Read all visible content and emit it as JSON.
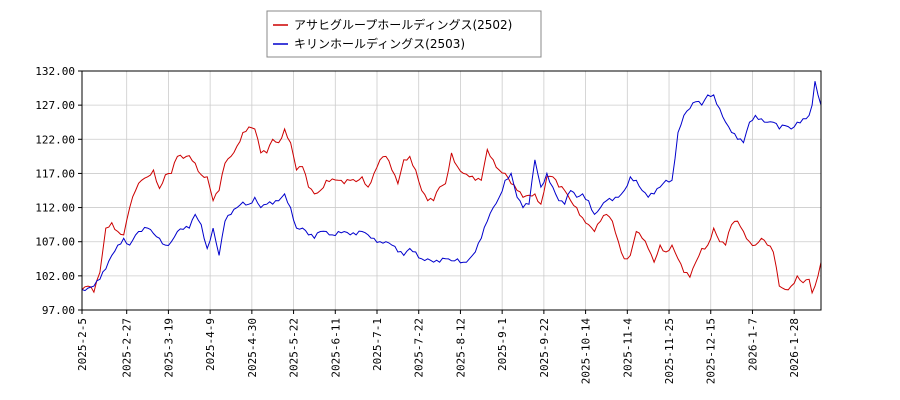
{
  "chart_data": {
    "type": "line",
    "title": "",
    "xlabel": "",
    "ylabel": "",
    "ylim": [
      97.0,
      132.0
    ],
    "yticks": [
      "97.00",
      "102.00",
      "107.00",
      "112.00",
      "117.00",
      "122.00",
      "127.00",
      "132.00"
    ],
    "grid": true,
    "legend_position": "top-center",
    "x_ticks": [
      {
        "label": "2025-2-5",
        "i": 0
      },
      {
        "label": "2025-2-27",
        "i": 15
      },
      {
        "label": "2025-3-19",
        "i": 29
      },
      {
        "label": "2025-4-9",
        "i": 43
      },
      {
        "label": "2025-4-30",
        "i": 57
      },
      {
        "label": "2025-5-22",
        "i": 71
      },
      {
        "label": "2025-6-11",
        "i": 85
      },
      {
        "label": "2025-7-1",
        "i": 99
      },
      {
        "label": "2025-7-22",
        "i": 113
      },
      {
        "label": "2025-8-12",
        "i": 127
      },
      {
        "label": "2025-9-1",
        "i": 141
      },
      {
        "label": "2025-9-22",
        "i": 155
      },
      {
        "label": "2025-10-14",
        "i": 169
      },
      {
        "label": "2025-11-4",
        "i": 183
      },
      {
        "label": "2025-11-25",
        "i": 197
      },
      {
        "label": "2025-12-15",
        "i": 211
      },
      {
        "label": "2026-1-7",
        "i": 225
      },
      {
        "label": "2026-1-28",
        "i": 239
      }
    ],
    "n_points": 245,
    "series": [
      {
        "name": "アサヒグループホールディングス(2502)",
        "color": "#cc0000",
        "anchors": [
          [
            0,
            100.0
          ],
          [
            2,
            100.5
          ],
          [
            4,
            99.6
          ],
          [
            6,
            102.5
          ],
          [
            8,
            109.0
          ],
          [
            10,
            109.8
          ],
          [
            12,
            108.5
          ],
          [
            14,
            108.0
          ],
          [
            16,
            112.0
          ],
          [
            18,
            114.5
          ],
          [
            20,
            116.0
          ],
          [
            22,
            116.5
          ],
          [
            24,
            117.5
          ],
          [
            26,
            114.8
          ],
          [
            28,
            116.8
          ],
          [
            30,
            117.0
          ],
          [
            32,
            119.5
          ],
          [
            34,
            119.2
          ],
          [
            36,
            119.6
          ],
          [
            38,
            118.5
          ],
          [
            40,
            116.8
          ],
          [
            42,
            116.5
          ],
          [
            44,
            113.0
          ],
          [
            46,
            114.5
          ],
          [
            48,
            118.5
          ],
          [
            50,
            119.5
          ],
          [
            52,
            121.0
          ],
          [
            54,
            123.0
          ],
          [
            56,
            123.8
          ],
          [
            58,
            123.5
          ],
          [
            60,
            120.0
          ],
          [
            62,
            120.0
          ],
          [
            64,
            122.0
          ],
          [
            66,
            121.5
          ],
          [
            68,
            123.5
          ],
          [
            70,
            121.5
          ],
          [
            72,
            117.5
          ],
          [
            74,
            118.0
          ],
          [
            76,
            115.0
          ],
          [
            78,
            114.0
          ],
          [
            80,
            114.5
          ],
          [
            82,
            116.0
          ],
          [
            84,
            116.2
          ],
          [
            86,
            116.0
          ],
          [
            88,
            115.5
          ],
          [
            90,
            116.0
          ],
          [
            92,
            115.8
          ],
          [
            94,
            116.5
          ],
          [
            96,
            115.0
          ],
          [
            98,
            117.0
          ],
          [
            100,
            119.0
          ],
          [
            102,
            119.5
          ],
          [
            104,
            117.5
          ],
          [
            106,
            115.5
          ],
          [
            108,
            119.0
          ],
          [
            110,
            119.5
          ],
          [
            112,
            117.5
          ],
          [
            114,
            114.5
          ],
          [
            116,
            113.0
          ],
          [
            118,
            113.0
          ],
          [
            120,
            115.0
          ],
          [
            122,
            115.5
          ],
          [
            124,
            120.0
          ],
          [
            126,
            118.0
          ],
          [
            128,
            117.0
          ],
          [
            130,
            116.5
          ],
          [
            132,
            116.0
          ],
          [
            134,
            116.0
          ],
          [
            136,
            120.5
          ],
          [
            138,
            119.0
          ],
          [
            140,
            117.5
          ],
          [
            142,
            117.0
          ],
          [
            144,
            115.5
          ],
          [
            146,
            114.5
          ],
          [
            148,
            113.5
          ],
          [
            150,
            113.8
          ],
          [
            152,
            114.0
          ],
          [
            154,
            112.5
          ],
          [
            156,
            116.5
          ],
          [
            158,
            116.5
          ],
          [
            160,
            115.0
          ],
          [
            162,
            114.5
          ],
          [
            164,
            113.0
          ],
          [
            166,
            112.0
          ],
          [
            168,
            110.5
          ],
          [
            170,
            109.5
          ],
          [
            172,
            108.5
          ],
          [
            174,
            110.0
          ],
          [
            176,
            111.0
          ],
          [
            178,
            110.0
          ],
          [
            180,
            107.0
          ],
          [
            182,
            104.5
          ],
          [
            184,
            105.0
          ],
          [
            186,
            108.5
          ],
          [
            188,
            107.5
          ],
          [
            190,
            106.0
          ],
          [
            192,
            104.0
          ],
          [
            194,
            106.5
          ],
          [
            196,
            105.5
          ],
          [
            198,
            106.5
          ],
          [
            200,
            104.5
          ],
          [
            202,
            102.5
          ],
          [
            204,
            101.8
          ],
          [
            206,
            104.0
          ],
          [
            208,
            106.0
          ],
          [
            210,
            106.5
          ],
          [
            212,
            109.0
          ],
          [
            214,
            107.0
          ],
          [
            216,
            106.5
          ],
          [
            218,
            109.5
          ],
          [
            220,
            110.0
          ],
          [
            222,
            108.5
          ],
          [
            224,
            107.0
          ],
          [
            226,
            106.5
          ],
          [
            228,
            107.5
          ],
          [
            230,
            106.5
          ],
          [
            232,
            105.5
          ],
          [
            234,
            100.5
          ],
          [
            236,
            100.0
          ],
          [
            238,
            100.5
          ],
          [
            240,
            102.0
          ],
          [
            242,
            101.0
          ],
          [
            244,
            101.5
          ]
        ],
        "extra_tail": [
          [
            245,
            99.5
          ],
          [
            246,
            100.5
          ],
          [
            247,
            102.0
          ],
          [
            248,
            104.0
          ]
        ]
      },
      {
        "name": "キリンホールディングス(2503)",
        "color": "#0000cc",
        "anchors": [
          [
            0,
            100.0
          ],
          [
            2,
            100.2
          ],
          [
            4,
            100.5
          ],
          [
            6,
            101.5
          ],
          [
            8,
            103.0
          ],
          [
            10,
            105.0
          ],
          [
            12,
            106.5
          ],
          [
            14,
            107.5
          ],
          [
            16,
            106.5
          ],
          [
            18,
            108.0
          ],
          [
            20,
            108.5
          ],
          [
            22,
            109.0
          ],
          [
            24,
            108.2
          ],
          [
            26,
            107.5
          ],
          [
            28,
            106.5
          ],
          [
            30,
            107.0
          ],
          [
            32,
            108.5
          ],
          [
            34,
            108.8
          ],
          [
            36,
            109.0
          ],
          [
            38,
            111.0
          ],
          [
            40,
            109.5
          ],
          [
            42,
            106.0
          ],
          [
            44,
            109.0
          ],
          [
            46,
            105.0
          ],
          [
            48,
            110.0
          ],
          [
            50,
            111.0
          ],
          [
            52,
            112.0
          ],
          [
            54,
            112.8
          ],
          [
            56,
            112.5
          ],
          [
            58,
            113.5
          ],
          [
            60,
            112.0
          ],
          [
            62,
            112.5
          ],
          [
            64,
            112.5
          ],
          [
            66,
            113.0
          ],
          [
            68,
            114.0
          ],
          [
            70,
            112.0
          ],
          [
            72,
            109.0
          ],
          [
            74,
            109.0
          ],
          [
            76,
            108.0
          ],
          [
            78,
            107.5
          ],
          [
            80,
            108.5
          ],
          [
            82,
            108.5
          ],
          [
            84,
            108.0
          ],
          [
            86,
            108.5
          ],
          [
            88,
            108.5
          ],
          [
            90,
            108.0
          ],
          [
            92,
            108.0
          ],
          [
            94,
            108.5
          ],
          [
            96,
            108.0
          ],
          [
            98,
            107.5
          ],
          [
            100,
            107.0
          ],
          [
            102,
            107.0
          ],
          [
            104,
            106.5
          ],
          [
            106,
            105.5
          ],
          [
            108,
            105.0
          ],
          [
            110,
            106.0
          ],
          [
            112,
            105.5
          ],
          [
            114,
            104.5
          ],
          [
            116,
            104.5
          ],
          [
            118,
            104.0
          ],
          [
            120,
            104.0
          ],
          [
            122,
            104.5
          ],
          [
            124,
            104.2
          ],
          [
            126,
            104.5
          ],
          [
            128,
            104.0
          ],
          [
            130,
            104.5
          ],
          [
            132,
            105.5
          ],
          [
            134,
            107.5
          ],
          [
            136,
            110.0
          ],
          [
            138,
            112.0
          ],
          [
            140,
            113.5
          ],
          [
            142,
            116.0
          ],
          [
            144,
            117.0
          ],
          [
            146,
            113.5
          ],
          [
            148,
            112.0
          ],
          [
            150,
            112.5
          ],
          [
            152,
            119.0
          ],
          [
            154,
            115.0
          ],
          [
            156,
            117.0
          ],
          [
            158,
            115.0
          ],
          [
            160,
            113.0
          ],
          [
            162,
            112.5
          ],
          [
            164,
            114.5
          ],
          [
            166,
            113.5
          ],
          [
            168,
            114.0
          ],
          [
            170,
            113.0
          ],
          [
            172,
            111.0
          ],
          [
            174,
            112.0
          ],
          [
            176,
            113.0
          ],
          [
            178,
            113.0
          ],
          [
            180,
            113.5
          ],
          [
            182,
            114.5
          ],
          [
            184,
            116.5
          ],
          [
            186,
            116.0
          ],
          [
            188,
            114.5
          ],
          [
            190,
            113.5
          ],
          [
            192,
            114.0
          ],
          [
            194,
            115.0
          ],
          [
            196,
            116.0
          ],
          [
            198,
            116.0
          ],
          [
            200,
            123.0
          ],
          [
            202,
            125.5
          ],
          [
            204,
            126.5
          ],
          [
            206,
            127.5
          ],
          [
            208,
            127.0
          ],
          [
            210,
            128.5
          ],
          [
            212,
            128.5
          ],
          [
            214,
            126.5
          ],
          [
            216,
            124.5
          ],
          [
            218,
            123.0
          ],
          [
            220,
            122.0
          ],
          [
            222,
            121.5
          ],
          [
            224,
            124.5
          ],
          [
            226,
            125.5
          ],
          [
            228,
            125.0
          ],
          [
            230,
            124.5
          ],
          [
            232,
            124.5
          ],
          [
            234,
            123.5
          ],
          [
            236,
            124.0
          ],
          [
            238,
            123.5
          ],
          [
            240,
            124.5
          ],
          [
            242,
            125.0
          ],
          [
            244,
            125.5
          ]
        ],
        "extra_tail": [
          [
            245,
            127.0
          ],
          [
            246,
            130.5
          ],
          [
            247,
            128.5
          ],
          [
            248,
            127.0
          ]
        ]
      }
    ]
  }
}
